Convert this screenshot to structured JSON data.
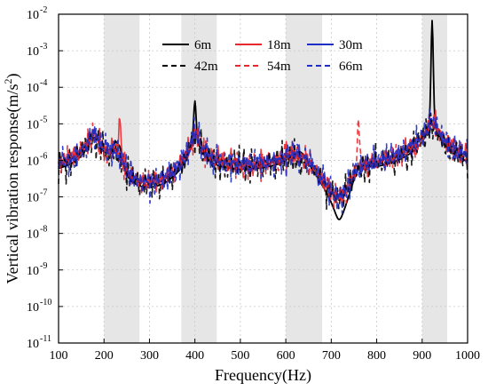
{
  "chart_data": {
    "type": "line",
    "xlabel": "Frequency(Hz)",
    "ylabel": "Vertical vibration response(m/s",
    "ylabel_sup": "2",
    "ylabel_close": ")",
    "xlim": [
      100,
      1000
    ],
    "ylim_log10": [
      -11,
      -2
    ],
    "y_scale": "log",
    "grid": true,
    "x_ticks": [
      100,
      200,
      300,
      400,
      500,
      600,
      700,
      800,
      900,
      1000
    ],
    "y_ticks": [
      {
        "exp": -11,
        "label": "10",
        "sup": "-11"
      },
      {
        "exp": -10,
        "label": "10",
        "sup": "-10"
      },
      {
        "exp": -9,
        "label": "10",
        "sup": "-9"
      },
      {
        "exp": -8,
        "label": "10",
        "sup": "-8"
      },
      {
        "exp": -7,
        "label": "10",
        "sup": "-7"
      },
      {
        "exp": -6,
        "label": "10",
        "sup": "-6"
      },
      {
        "exp": -5,
        "label": "10",
        "sup": "-5"
      },
      {
        "exp": -4,
        "label": "10",
        "sup": "-4"
      },
      {
        "exp": -3,
        "label": "10",
        "sup": "-3"
      },
      {
        "exp": -2,
        "label": "10",
        "sup": "-2"
      }
    ],
    "shaded_bands": [
      [
        200,
        278
      ],
      [
        370,
        448
      ],
      [
        600,
        680
      ],
      [
        900,
        955
      ]
    ],
    "legend_position": "top-center",
    "series": [
      {
        "name": "6m",
        "color": "#000000",
        "dash": "solid",
        "peaks": [
          [
            178,
            5
          ],
          [
            220,
            14
          ],
          [
            232,
            13
          ],
          [
            400,
            9
          ],
          [
            512,
            9
          ],
          [
            632,
            15
          ],
          [
            760,
            8
          ],
          [
            922,
            0
          ],
          [
            975,
            11
          ]
        ],
        "dips": [
          [
            178,
            5
          ],
          [
            315,
            1
          ],
          [
            340,
            4
          ],
          [
            512,
            9
          ],
          [
            700,
            6
          ],
          [
            785,
            14
          ],
          [
            975,
            11
          ]
        ]
      },
      {
        "name": "18m",
        "color": "#e8282e",
        "dash": "solid",
        "peaks": [
          [
            222,
            6
          ],
          [
            236,
            14
          ],
          [
            410,
            9
          ],
          [
            632,
            15
          ],
          [
            755,
            6
          ],
          [
            922,
            2
          ],
          [
            975,
            11
          ]
        ],
        "dips": [
          [
            175,
            5
          ],
          [
            300,
            6
          ],
          [
            345,
            7
          ],
          [
            505,
            9
          ],
          [
            580,
            8
          ],
          [
            705,
            11
          ],
          [
            790,
            14
          ]
        ]
      },
      {
        "name": "30m",
        "color": "#1f2ec4",
        "dash": "solid",
        "peaks": [
          [
            228,
            6
          ],
          [
            398,
            7
          ],
          [
            630,
            15
          ],
          [
            750,
            4
          ],
          [
            918,
            12
          ]
        ],
        "dips": [
          [
            180,
            5
          ],
          [
            340,
            9
          ],
          [
            512,
            10
          ],
          [
            690,
            9
          ],
          [
            790,
            2
          ],
          [
            975,
            10
          ]
        ]
      },
      {
        "name": "42m",
        "color": "#000000",
        "dash": "dashed",
        "peaks": [
          [
            220,
            13
          ],
          [
            400,
            12
          ],
          [
            650,
            12
          ],
          [
            900,
            15
          ]
        ],
        "dips": [
          [
            290,
            15
          ],
          [
            405,
            8
          ],
          [
            520,
            4
          ],
          [
            905,
            12
          ]
        ]
      },
      {
        "name": "54m",
        "color": "#e8282e",
        "dash": "dashed",
        "peaks": [
          [
            225,
            13
          ],
          [
            392,
            11
          ],
          [
            645,
            13
          ],
          [
            755,
            8
          ],
          [
            918,
            3
          ]
        ],
        "dips": [
          [
            340,
            3
          ],
          [
            515,
            7
          ],
          [
            700,
            2
          ],
          [
            975,
            9
          ]
        ]
      },
      {
        "name": "66m",
        "color": "#1f2ec4",
        "dash": "dashed",
        "peaks": [
          [
            228,
            6
          ],
          [
            395,
            12
          ],
          [
            600,
            15
          ],
          [
            668,
            4
          ],
          [
            915,
            15
          ]
        ],
        "dips": [
          [
            300,
            4
          ],
          [
            348,
            9
          ],
          [
            520,
            14
          ],
          [
            710,
            12
          ],
          [
            978,
            8
          ]
        ]
      }
    ]
  }
}
